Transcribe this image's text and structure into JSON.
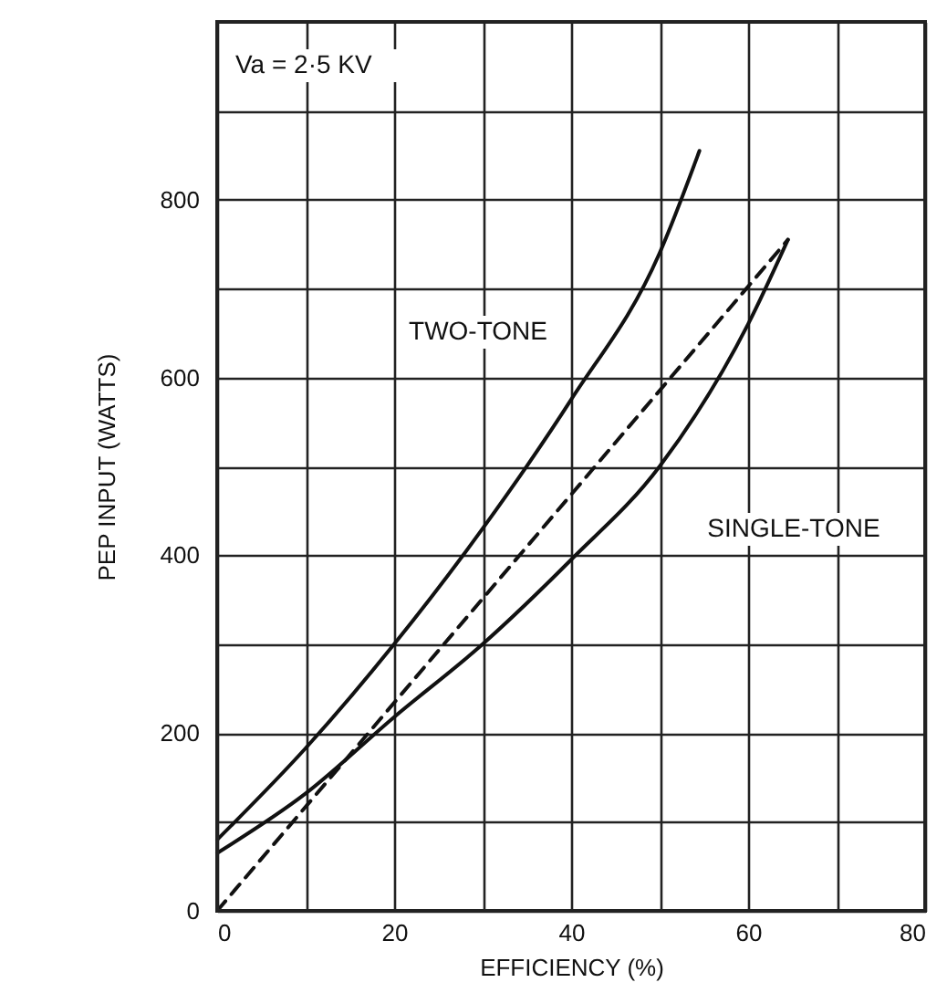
{
  "chart_data": {
    "type": "line",
    "xlabel": "EFFICIENCY (%)",
    "ylabel": "PEP INPUT (WATTS)",
    "annotations": [
      "Va = 2·5 KV",
      "TWO-TONE",
      "SINGLE-TONE"
    ],
    "series": [
      {
        "color": "#111111",
        "line_style": "solid",
        "x": [
          0,
          10,
          20,
          30,
          40,
          50,
          54.5
        ],
        "values": [
          80,
          183,
          300,
          430,
          575,
          740,
          855
        ]
      },
      {
        "color": "#111111",
        "line_style": "solid",
        "x": [
          0,
          10,
          20,
          30,
          40,
          50,
          60,
          64.5
        ],
        "values": [
          65,
          132,
          218,
          300,
          395,
          500,
          660,
          755
        ]
      },
      {
        "color": "#111111",
        "line_style": "dashed",
        "x": [
          0,
          64.5
        ],
        "values": [
          0,
          755
        ]
      }
    ],
    "xlim": [
      0,
      80
    ],
    "ylim": [
      0,
      1000
    ],
    "xticks": [
      0,
      {
        "value": 10,
        "label": null
      },
      20,
      {
        "value": 30,
        "label": null
      },
      40,
      {
        "value": 50,
        "label": null
      },
      60,
      {
        "value": 70,
        "label": null
      },
      80
    ],
    "yticks": [
      0,
      {
        "value": 100,
        "label": null
      },
      200,
      {
        "value": 300,
        "label": null
      },
      400,
      {
        "value": 500,
        "label": null
      },
      600,
      {
        "value": 700,
        "label": null
      },
      800,
      {
        "value": 900,
        "label": null
      }
    ],
    "grid": true,
    "marker": "none"
  }
}
